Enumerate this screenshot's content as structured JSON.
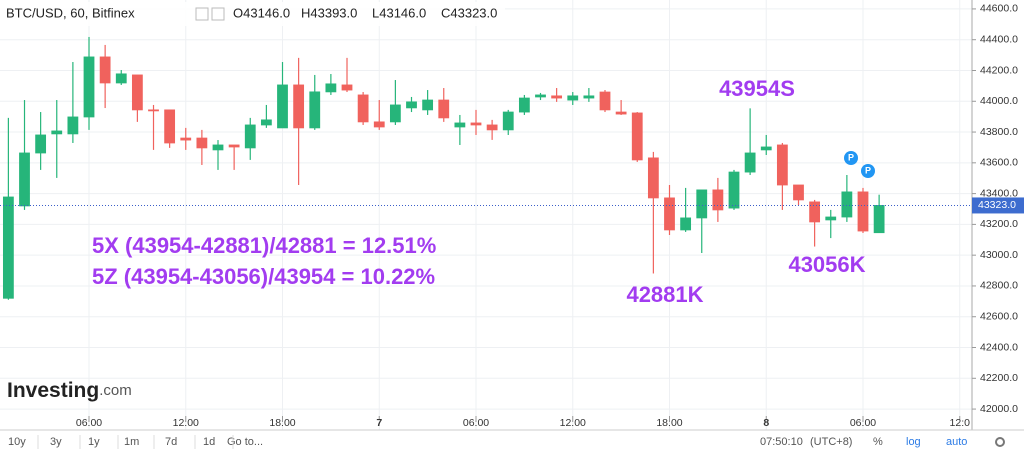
{
  "chart_data": {
    "type": "candlestick",
    "header": {
      "symbol": "BTC/USD, 60, Bitfinex",
      "ohlc": [
        "O43146.0",
        "H43393.0",
        "L43146.0",
        "C43323.0"
      ]
    },
    "x": [
      0,
      1,
      2,
      3,
      4,
      5,
      6,
      7,
      8,
      9,
      10,
      11,
      12,
      13,
      14,
      15,
      16,
      17,
      18,
      19,
      20,
      21,
      22,
      23,
      24,
      25,
      26,
      27,
      28,
      29,
      30,
      31,
      32,
      33,
      34,
      35,
      36,
      37,
      38,
      39,
      40,
      41,
      42,
      43,
      44,
      45,
      46,
      47,
      48,
      49,
      50,
      51,
      52,
      53,
      54
    ],
    "open": [
      42720,
      43320,
      43664,
      43788,
      43788,
      43898,
      44288,
      44119,
      44171,
      43944,
      43944,
      43761,
      43761,
      43684,
      43716,
      43697,
      43846,
      43827,
      44106,
      43827,
      44061,
      44106,
      44041,
      43866,
      43866,
      43957,
      43944,
      44008,
      43833,
      43859,
      43846,
      43814,
      43930,
      44028,
      44035,
      44008,
      44021,
      44060,
      43930,
      43924,
      43632,
      43372,
      43164,
      43242,
      43424,
      43306,
      43540,
      43684,
      43716,
      43456,
      43346,
      43229,
      43248,
      43411,
      43146
    ],
    "high": [
      43892,
      44008,
      43930,
      44008,
      44255,
      44418,
      44366,
      44203,
      44171,
      43976,
      43944,
      43827,
      43814,
      43748,
      43716,
      43892,
      43976,
      44255,
      44282,
      44171,
      44177,
      44282,
      44060,
      44008,
      44138,
      44028,
      44073,
      44086,
      43911,
      43944,
      43879,
      43944,
      44041,
      44054,
      44086,
      44060,
      44086,
      44073,
      44008,
      43930,
      43671,
      43456,
      43437,
      43424,
      43502,
      43554,
      43954,
      43781,
      43729,
      43456,
      43359,
      43294,
      43521,
      43437,
      43393
    ],
    "low": [
      42710,
      43294,
      43554,
      43502,
      43729,
      43814,
      43956,
      44106,
      43866,
      43684,
      43697,
      43684,
      43586,
      43554,
      43554,
      43619,
      43827,
      43827,
      43456,
      43814,
      44041,
      44060,
      43846,
      43814,
      43846,
      43930,
      43911,
      43866,
      43716,
      43781,
      43749,
      43781,
      43911,
      44008,
      43996,
      43976,
      43996,
      43930,
      43911,
      43606,
      42881,
      43131,
      43151,
      43014,
      43216,
      43294,
      43521,
      43651,
      43294,
      43326,
      43056,
      43111,
      43216,
      43144,
      43146
    ],
    "close": [
      43378,
      43664,
      43781,
      43807,
      43898,
      44288,
      44119,
      44178,
      43944,
      43940,
      43729,
      43748,
      43697,
      43716,
      43703,
      43846,
      43879,
      44106,
      43827,
      44061,
      44113,
      44073,
      43866,
      43833,
      43976,
      43996,
      44008,
      43892,
      43859,
      43846,
      43814,
      43930,
      44021,
      44041,
      44021,
      44035,
      44035,
      43944,
      43917,
      43619,
      43372,
      43164,
      43242,
      43424,
      43294,
      43540,
      43664,
      43703,
      43456,
      43359,
      43216,
      43248,
      43411,
      43157,
      43323
    ],
    "up_color": "#26b57a",
    "down_color": "#f0625d",
    "xlim": [
      -0.52,
      59.76
    ],
    "xticks": [
      {
        "value": 5,
        "label": "06:00"
      },
      {
        "value": 11,
        "label": "12:00"
      },
      {
        "value": 17,
        "label": "18:00"
      },
      {
        "value": 23,
        "label": "7"
      },
      {
        "value": 29,
        "label": "06:00"
      },
      {
        "value": 35,
        "label": "12:00"
      },
      {
        "value": 41,
        "label": "18:00"
      },
      {
        "value": 47,
        "label": "8"
      },
      {
        "value": 53,
        "label": "06:00"
      },
      {
        "value": 59,
        "label": "12:0"
      }
    ],
    "ylim": [
      41864,
      44658
    ],
    "yticks": [
      {
        "value": 42000,
        "label": "42000.0"
      },
      {
        "value": 42200,
        "label": "42200.0"
      },
      {
        "value": 42400,
        "label": "42400.0"
      },
      {
        "value": 42600,
        "label": "42600.0"
      },
      {
        "value": 42800,
        "label": "42800.0"
      },
      {
        "value": 43000,
        "label": "43000.0"
      },
      {
        "value": 43200,
        "label": "43200.0"
      },
      {
        "value": 43400,
        "label": "43400.0"
      },
      {
        "value": 43600,
        "label": "43600.0"
      },
      {
        "value": 43800,
        "label": "43800.0"
      },
      {
        "value": 44000,
        "label": "44000.0"
      },
      {
        "value": 44200,
        "label": "44200.0"
      },
      {
        "value": 44400,
        "label": "44400.0"
      },
      {
        "value": 44600,
        "label": "44600.0"
      }
    ],
    "grid": true,
    "last_price": {
      "value": 43323,
      "label": "43323.0"
    },
    "annotations": [
      "5X (43954-42881)/42881 = 12.51%",
      "5Z (43954-43056)/43954 = 10.22%",
      "43954S",
      "42881K",
      "43056K"
    ],
    "markers": [
      "P",
      "P"
    ],
    "logo": [
      "Investing",
      ".com"
    ],
    "toolbar": {
      "ranges": [
        "10y",
        "3y",
        "1y",
        "1m",
        "7d",
        "1d"
      ],
      "goto": "Go to...",
      "time": "07:50:10",
      "timezone": "(UTC+8)",
      "percent": "%",
      "log": "log",
      "auto": "auto"
    }
  }
}
